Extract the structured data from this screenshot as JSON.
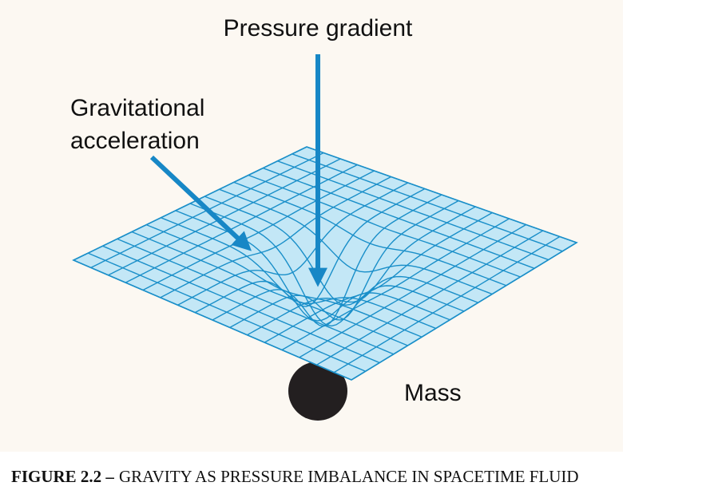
{
  "figure": {
    "labels": {
      "pressure_gradient": "Pressure gradient",
      "gravitational_acceleration": [
        "Gravitational",
        "acceleration"
      ],
      "mass": "Mass"
    },
    "caption": {
      "number": "FIGURE 2.2 –",
      "text": "GRAVITY AS PRESSURE IMBALANCE IN SPACETIME FLUID"
    }
  }
}
